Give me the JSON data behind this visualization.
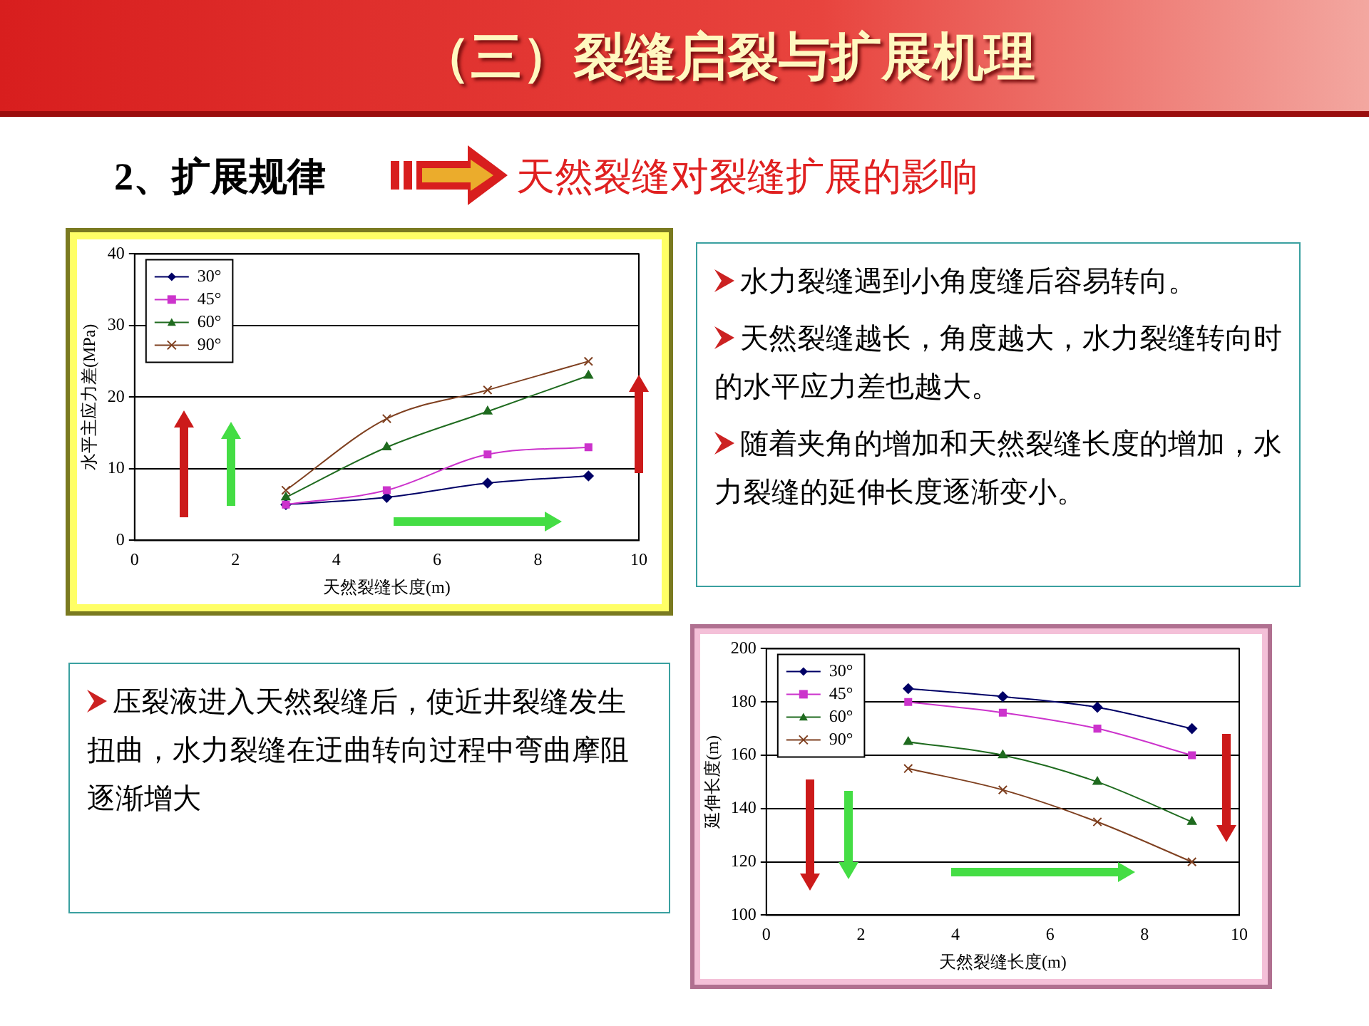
{
  "chart_data": [
    {
      "type": "other",
      "title": "（三）裂缝启裂与扩展机理",
      "subtitle": "2、扩展规律",
      "annotations": [
        "天然裂缝对裂缝扩展的影响"
      ]
    },
    {
      "type": "line",
      "xlabel": "天然裂缝长度(m)",
      "ylabel": "水平主应力差(MPa)",
      "x": [
        3,
        5,
        7,
        9
      ],
      "xlim": [
        0,
        10
      ],
      "xticks": [
        0,
        2,
        4,
        6,
        8,
        10
      ],
      "ylim": [
        0,
        40
      ],
      "yticks": [
        0,
        10,
        20,
        30,
        40
      ],
      "grid": "y",
      "legend": "top left",
      "series": [
        {
          "name": "30°",
          "color": "#000066",
          "marker": "diamond",
          "values": [
            5,
            6,
            8,
            9
          ]
        },
        {
          "name": "45°",
          "color": "#cc33cc",
          "marker": "square",
          "values": [
            5,
            7,
            12,
            13
          ]
        },
        {
          "name": "60°",
          "color": "#1f6b1f",
          "marker": "triangle",
          "values": [
            6,
            13,
            18,
            23
          ]
        },
        {
          "name": "90°",
          "color": "#7f4020",
          "marker": "cross",
          "values": [
            7,
            17,
            21,
            25
          ]
        }
      ]
    },
    {
      "type": "other",
      "annotations": [
        "水力裂缝遇到小角度缝后容易转向。",
        "天然裂缝越长，角度越大，水力裂缝转向时的水平应力差也越大。",
        "随着夹角的增加和天然裂缝长度的增加，水力裂缝的延伸长度逐渐变小。"
      ]
    },
    {
      "type": "other",
      "annotations": [
        "压裂液进入天然裂缝后，使近井裂缝发生扭曲，水力裂缝在迂曲转向过程中弯曲摩阻逐渐增大"
      ]
    },
    {
      "type": "line",
      "xlabel": "天然裂缝长度(m)",
      "ylabel": "延伸长度(m)",
      "x": [
        3,
        5,
        7,
        9
      ],
      "xlim": [
        0,
        10
      ],
      "xticks": [
        0,
        2,
        4,
        6,
        8,
        10
      ],
      "ylim": [
        100,
        200
      ],
      "yticks": [
        100,
        120,
        140,
        160,
        180,
        200
      ],
      "grid": "y",
      "legend": "top left",
      "series": [
        {
          "name": "30°",
          "color": "#000066",
          "marker": "diamond",
          "values": [
            185,
            182,
            178,
            170
          ]
        },
        {
          "name": "45°",
          "color": "#cc33cc",
          "marker": "square",
          "values": [
            180,
            176,
            170,
            160
          ]
        },
        {
          "name": "60°",
          "color": "#1f6b1f",
          "marker": "triangle",
          "values": [
            165,
            160,
            150,
            135
          ]
        },
        {
          "name": "90°",
          "color": "#7f4020",
          "marker": "cross",
          "values": [
            155,
            147,
            135,
            120
          ]
        }
      ]
    }
  ]
}
